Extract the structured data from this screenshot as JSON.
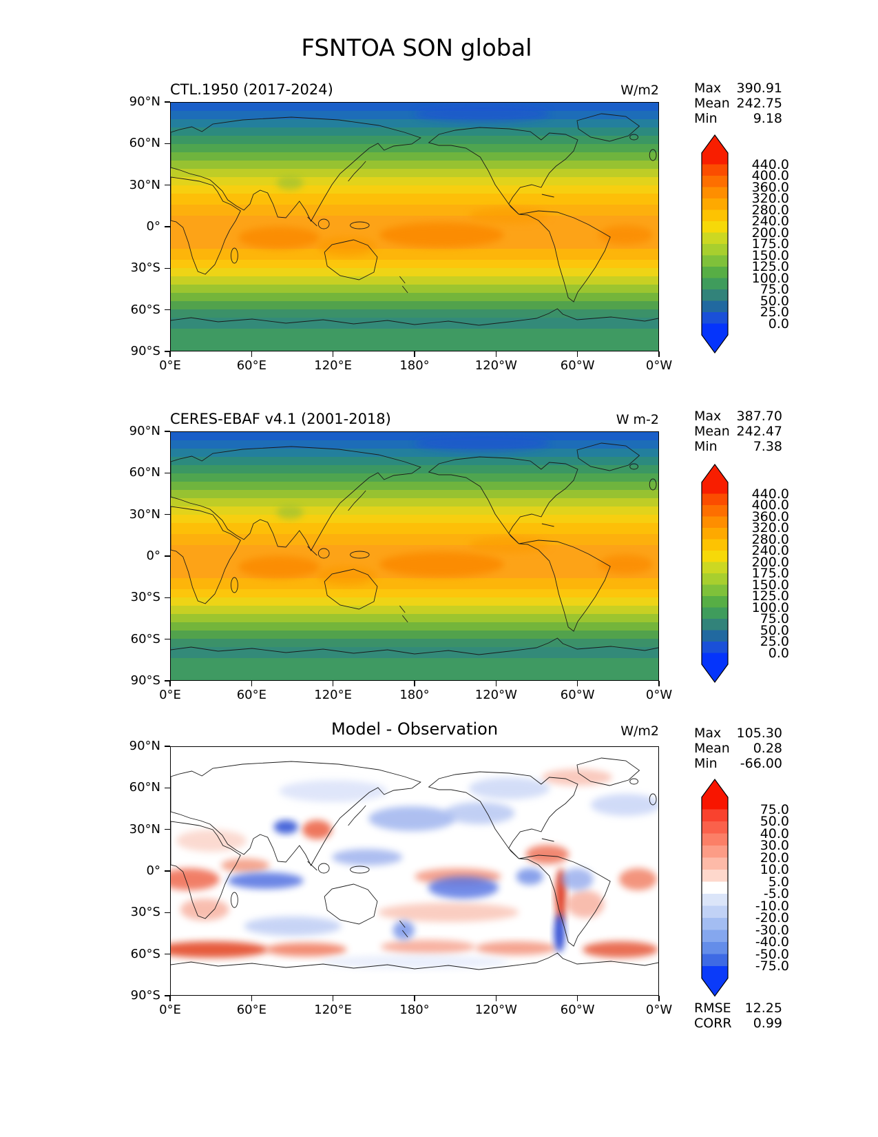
{
  "title": "FSNTOA SON global",
  "axes": {
    "y_ticks": [
      "90°N",
      "60°N",
      "30°N",
      "0°",
      "30°S",
      "60°S",
      "90°S"
    ],
    "x_ticks": [
      "0°E",
      "60°E",
      "120°E",
      "180°",
      "120°W",
      "60°W",
      "0°W"
    ]
  },
  "panels": [
    {
      "title": "CTL.1950 (2017-2024)",
      "unit": "W/m2",
      "stats": [
        {
          "label": "Max",
          "value": "390.91"
        },
        {
          "label": "Mean",
          "value": "242.75"
        },
        {
          "label": "Min",
          "value": "9.18"
        }
      ],
      "colorbar": {
        "ticks": [
          "440.0",
          "400.0",
          "360.0",
          "320.0",
          "280.0",
          "240.0",
          "200.0",
          "175.0",
          "150.0",
          "125.0",
          "100.0",
          "75.0",
          "50.0",
          "25.0",
          "0.0"
        ],
        "colors": [
          "#f81e00",
          "#fb4d00",
          "#fd6f00",
          "#fe8e00",
          "#fea900",
          "#fdc302",
          "#f6d909",
          "#ccd822",
          "#a8cf2e",
          "#7fc13a",
          "#57ae45",
          "#3f9c5c",
          "#32837a",
          "#2169a0",
          "#1a50d8",
          "#0534fb"
        ]
      }
    },
    {
      "title": "CERES-EBAF v4.1 (2001-2018)",
      "unit": "W m-2",
      "stats": [
        {
          "label": "Max",
          "value": "387.70"
        },
        {
          "label": "Mean",
          "value": "242.47"
        },
        {
          "label": "Min",
          "value": "7.38"
        }
      ],
      "colorbar": {
        "ticks": [
          "440.0",
          "400.0",
          "360.0",
          "320.0",
          "280.0",
          "240.0",
          "200.0",
          "175.0",
          "150.0",
          "125.0",
          "100.0",
          "75.0",
          "50.0",
          "25.0",
          "0.0"
        ],
        "colors": [
          "#f81e00",
          "#fb4d00",
          "#fd6f00",
          "#fe8e00",
          "#fea900",
          "#fdc302",
          "#f6d909",
          "#ccd822",
          "#a8cf2e",
          "#7fc13a",
          "#57ae45",
          "#3f9c5c",
          "#32837a",
          "#2169a0",
          "#1a50d8",
          "#0534fb"
        ]
      }
    },
    {
      "title": "Model - Observation",
      "unit": "W/m2",
      "stats": [
        {
          "label": "Max",
          "value": "105.30"
        },
        {
          "label": "Mean",
          "value": "0.28"
        },
        {
          "label": "Min",
          "value": "-66.00"
        }
      ],
      "extra_stats": [
        {
          "label": "RMSE",
          "value": "12.25"
        },
        {
          "label": "CORR",
          "value": "0.99"
        }
      ],
      "colorbar": {
        "ticks": [
          "75.0",
          "50.0",
          "40.0",
          "30.0",
          "20.0",
          "10.0",
          "5.0",
          "-5.0",
          "-10.0",
          "-20.0",
          "-30.0",
          "-40.0",
          "-50.0",
          "-75.0"
        ],
        "colors": [
          "#f81500",
          "#f9422e",
          "#fa614b",
          "#fb7f67",
          "#fc9c86",
          "#fdbaa8",
          "#fed8cc",
          "#ffffff",
          "#dbe5f9",
          "#c1d2f6",
          "#a3bdf2",
          "#85a7ee",
          "#648de9",
          "#3e6ae4",
          "#0b3bf9"
        ]
      }
    }
  ],
  "chart_data": [
    {
      "type": "heatmap",
      "subtype": "filled-contour global map",
      "variable": "FSNTOA",
      "season": "SON",
      "region": "global",
      "title": "CTL.1950 (2017-2024)",
      "units": "W/m2",
      "projection": "equirectangular, Pacific-centered, lon 0°E to 0°W, lat 90°N to 90°S",
      "contour_levels": [
        0,
        25,
        50,
        75,
        100,
        125,
        150,
        175,
        200,
        240,
        280,
        320,
        360,
        400,
        440
      ],
      "stats": {
        "max": 390.91,
        "mean": 242.75,
        "min": 9.18
      },
      "zonal_mean_approx": [
        {
          "lat": "90N",
          "value": 55
        },
        {
          "lat": "75N",
          "value": 75
        },
        {
          "lat": "60N",
          "value": 120
        },
        {
          "lat": "45N",
          "value": 200
        },
        {
          "lat": "30N",
          "value": 290
        },
        {
          "lat": "15N",
          "value": 330
        },
        {
          "lat": "0",
          "value": 345
        },
        {
          "lat": "15S",
          "value": 330
        },
        {
          "lat": "30S",
          "value": 265
        },
        {
          "lat": "45S",
          "value": 175
        },
        {
          "lat": "60S",
          "value": 95
        },
        {
          "lat": "75S",
          "value": 95
        },
        {
          "lat": "90S",
          "value": 110
        }
      ]
    },
    {
      "type": "heatmap",
      "subtype": "filled-contour global map",
      "variable": "FSNTOA",
      "season": "SON",
      "region": "global",
      "title": "CERES-EBAF v4.1 (2001-2018)",
      "units": "W m-2",
      "projection": "equirectangular, Pacific-centered, lon 0°E to 0°W, lat 90°N to 90°S",
      "contour_levels": [
        0,
        25,
        50,
        75,
        100,
        125,
        150,
        175,
        200,
        240,
        280,
        320,
        360,
        400,
        440
      ],
      "stats": {
        "max": 387.7,
        "mean": 242.47,
        "min": 7.38
      },
      "zonal_mean_approx": [
        {
          "lat": "90N",
          "value": 55
        },
        {
          "lat": "75N",
          "value": 75
        },
        {
          "lat": "60N",
          "value": 120
        },
        {
          "lat": "45N",
          "value": 200
        },
        {
          "lat": "30N",
          "value": 290
        },
        {
          "lat": "15N",
          "value": 330
        },
        {
          "lat": "0",
          "value": 345
        },
        {
          "lat": "15S",
          "value": 330
        },
        {
          "lat": "30S",
          "value": 265
        },
        {
          "lat": "45S",
          "value": 175
        },
        {
          "lat": "60S",
          "value": 95
        },
        {
          "lat": "75S",
          "value": 95
        },
        {
          "lat": "90S",
          "value": 110
        }
      ]
    },
    {
      "type": "heatmap",
      "subtype": "difference map (model minus observation)",
      "title": "Model - Observation",
      "units": "W/m2",
      "contour_levels": [
        -75,
        -50,
        -40,
        -30,
        -20,
        -10,
        -5,
        5,
        10,
        20,
        30,
        40,
        50,
        75
      ],
      "stats": {
        "max": 105.3,
        "mean": 0.28,
        "min": -66.0,
        "rmse": 12.25,
        "corr": 0.99
      },
      "notable_features": [
        "strong positive bias (red) over the Southern Ocean near 55-60S, strongest 0-120E",
        "positive bias along equatorial Atlantic / Africa and central equatorial Pacific",
        "narrow strong positive bias along the Andes with strong negative strip over southern Chile",
        "negative bias (blue) over Tibet, North Pacific mid-latitudes, tropical Indian Ocean and south-central Pacific",
        "mostly near-zero (white) elsewhere"
      ]
    }
  ],
  "render": {
    "zonal_bands": [
      [
        90,
        84,
        "#1a5fc8"
      ],
      [
        84,
        78,
        "#1d6db8"
      ],
      [
        78,
        72,
        "#237f9d"
      ],
      [
        72,
        66,
        "#2c8a7e"
      ],
      [
        66,
        60,
        "#3b9763"
      ],
      [
        60,
        54,
        "#4fa54f"
      ],
      [
        54,
        48,
        "#6fb43e"
      ],
      [
        48,
        42,
        "#97c231"
      ],
      [
        42,
        36,
        "#bfcd26"
      ],
      [
        36,
        30,
        "#e2d31b"
      ],
      [
        30,
        24,
        "#f7cf10"
      ],
      [
        24,
        16,
        "#fdbf08"
      ],
      [
        16,
        8,
        "#fdb00d"
      ],
      [
        8,
        -16,
        "#fda317"
      ],
      [
        -16,
        -24,
        "#fdb50a"
      ],
      [
        -24,
        -30,
        "#fcc60c"
      ],
      [
        -30,
        -36,
        "#eed416"
      ],
      [
        -36,
        -42,
        "#c8d023"
      ],
      [
        -42,
        -48,
        "#9cc52f"
      ],
      [
        -48,
        -54,
        "#74b53b"
      ],
      [
        -54,
        -60,
        "#52a24c"
      ],
      [
        -60,
        -66,
        "#3b9169"
      ],
      [
        -66,
        -74,
        "#338a79"
      ],
      [
        -74,
        -90,
        "#3f9a62"
      ]
    ],
    "warm_patches": [
      [
        80,
        -8,
        30,
        8,
        "#fb8a00",
        0.85
      ],
      [
        200,
        -6,
        46,
        9,
        "#fb8a00",
        0.9
      ],
      [
        336,
        -6,
        20,
        7,
        "#fb8a00",
        0.75
      ],
      [
        130,
        -14,
        22,
        7,
        "#fc9a05",
        0.7
      ],
      [
        88,
        32,
        10,
        5,
        "#a9c42f",
        0.85
      ],
      [
        250,
        8,
        30,
        6,
        "#fc9a05",
        0.6
      ],
      [
        230,
        82,
        50,
        6,
        "#1b55d0",
        0.7
      ]
    ],
    "diff_blobs": [
      [
        30,
        -57,
        42,
        6,
        "#e2401f",
        0.85
      ],
      [
        100,
        -57,
        30,
        5,
        "#ee6847",
        0.75
      ],
      [
        190,
        -55,
        35,
        5,
        "#f4927a",
        0.7
      ],
      [
        255,
        -56,
        30,
        5,
        "#ee6847",
        0.6
      ],
      [
        332,
        -57,
        28,
        6,
        "#e2401f",
        0.75
      ],
      [
        14,
        -6,
        22,
        8,
        "#ee5f43",
        0.8
      ],
      [
        55,
        4,
        18,
        5,
        "#f08060",
        0.7
      ],
      [
        108,
        30,
        11,
        7,
        "#ea5535",
        0.8
      ],
      [
        212,
        -4,
        32,
        6,
        "#f2846a",
        0.75
      ],
      [
        278,
        12,
        16,
        7,
        "#ec6143",
        0.75
      ],
      [
        288,
        -18,
        4,
        20,
        "#dd3214",
        0.9
      ],
      [
        306,
        -24,
        14,
        10,
        "#f4927a",
        0.6
      ],
      [
        205,
        -30,
        52,
        7,
        "#f8b3a0",
        0.65
      ],
      [
        25,
        -28,
        18,
        8,
        "#f4927a",
        0.6
      ],
      [
        345,
        -6,
        14,
        8,
        "#ee6847",
        0.7
      ],
      [
        300,
        68,
        26,
        6,
        "#f6a692",
        0.6
      ],
      [
        30,
        22,
        26,
        8,
        "#f8bcab",
        0.55
      ],
      [
        85,
        32,
        9,
        5,
        "#3656d6",
        0.9
      ],
      [
        70,
        -7,
        28,
        6,
        "#4767df",
        0.8
      ],
      [
        145,
        10,
        26,
        6,
        "#8aa2ea",
        0.7
      ],
      [
        178,
        38,
        32,
        9,
        "#93aaec",
        0.75
      ],
      [
        228,
        42,
        26,
        8,
        "#a8bcf0",
        0.7
      ],
      [
        216,
        -12,
        26,
        8,
        "#4f6ee2",
        0.8
      ],
      [
        90,
        -40,
        36,
        7,
        "#b0c2f2",
        0.7
      ],
      [
        287,
        -45,
        4,
        14,
        "#2341d0",
        0.9
      ],
      [
        172,
        -43,
        8,
        7,
        "#6787e5",
        0.75
      ],
      [
        336,
        48,
        26,
        8,
        "#b8c8f4",
        0.65
      ],
      [
        250,
        60,
        30,
        8,
        "#b0c2f2",
        0.55
      ],
      [
        120,
        58,
        40,
        8,
        "#c6d2f6",
        0.55
      ],
      [
        300,
        -6,
        12,
        8,
        "#7c96e8",
        0.65
      ],
      [
        265,
        -4,
        10,
        6,
        "#6282e4",
        0.75
      ],
      [
        180,
        -66,
        70,
        5,
        "#dce4fa",
        0.6
      ]
    ]
  }
}
